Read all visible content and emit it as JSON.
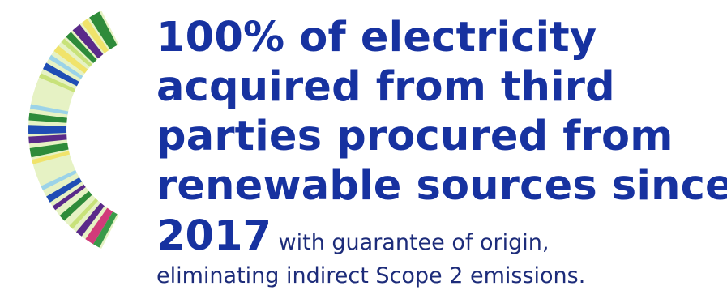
{
  "headline": {
    "lines": [
      "100% of electricity",
      "acquired from third",
      "parties procured from",
      "renewable sources since"
    ],
    "year": "2017",
    "tail": " with guarantee of origin,"
  },
  "body": {
    "line2": "eliminating indirect Scope 2 emissions."
  },
  "colors": {
    "headline": "#1732a0",
    "body": "#1d2c7a",
    "ring_base": "#e6f2c4",
    "stripes": [
      "#2e8b3a",
      "#5a2a8a",
      "#f0e36b",
      "#1f4db5",
      "#9bd3e8",
      "#c8e27a",
      "#d13a7a",
      "#3a9a4a"
    ]
  },
  "decoration": {
    "icon": "color-stripe-ring-icon"
  }
}
